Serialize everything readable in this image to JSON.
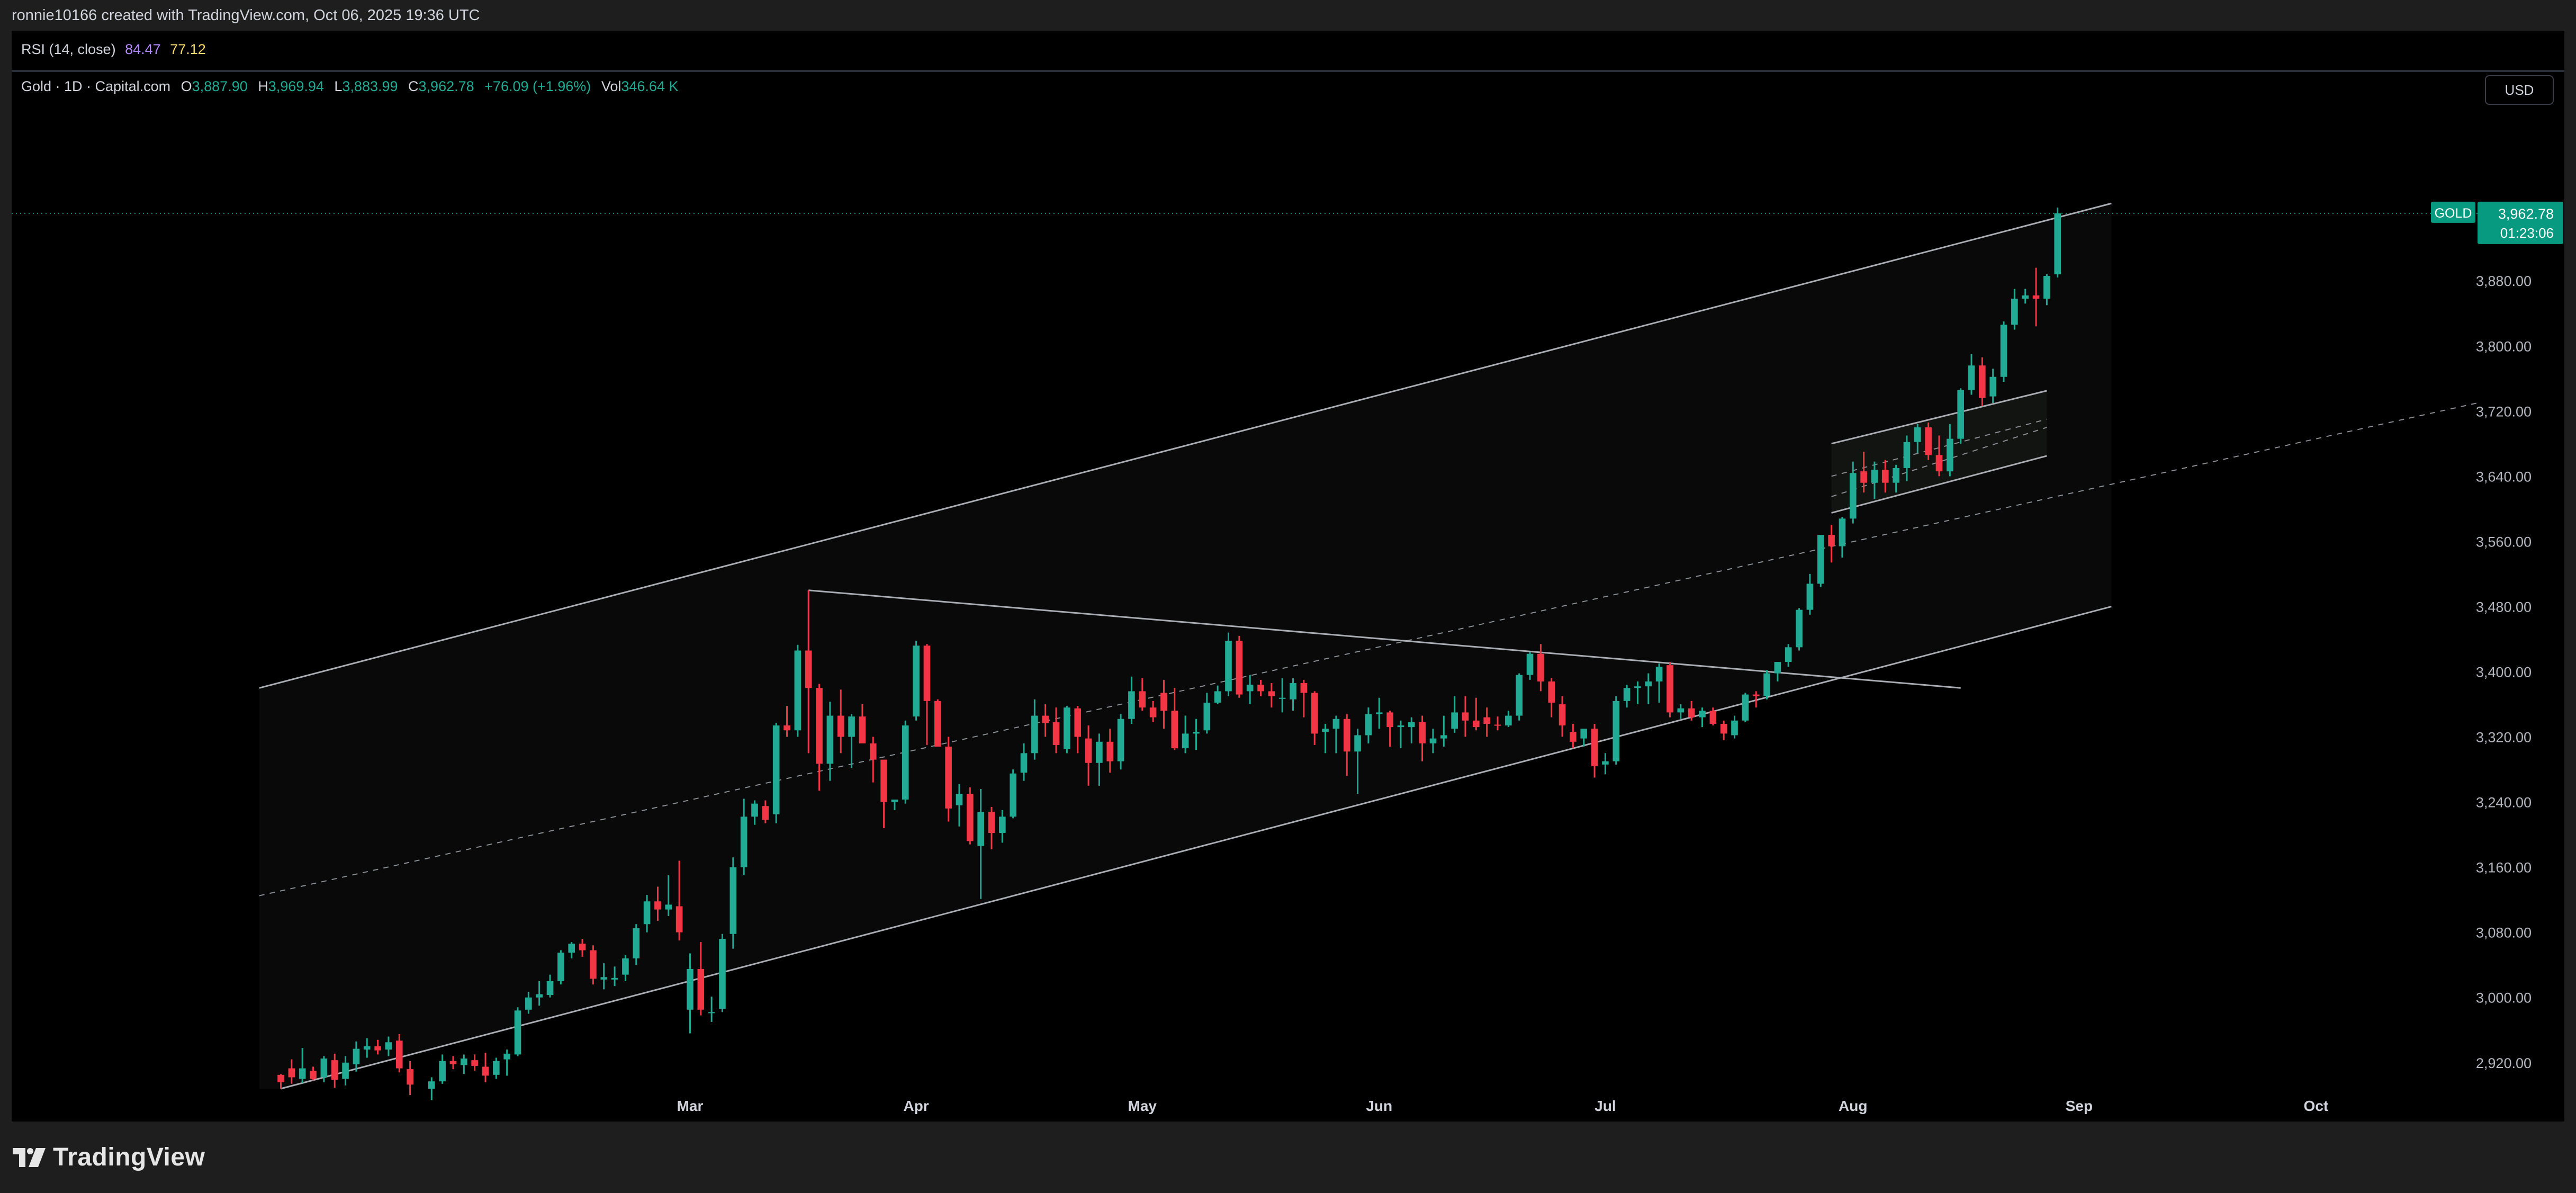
{
  "header": {
    "caption": "ronnie10166 created with TradingView.com, Oct 06, 2025 19:36 UTC"
  },
  "rsi": {
    "label": "RSI (14, close)",
    "value1": "84.47",
    "value2": "77.12",
    "color1": "#b388ff",
    "color2": "#f5d76e"
  },
  "legend": {
    "symbol": "Gold · 1D · Capital.com",
    "o_label": "O",
    "o_value": "3,887.90",
    "h_label": "H",
    "h_value": "3,969.94",
    "l_label": "L",
    "l_value": "3,883.99",
    "c_label": "C",
    "c_value": "3,962.78",
    "change": "+76.09 (+1.96%)",
    "vol_label": "Vol",
    "vol_value": "346.64 K"
  },
  "currency_button": "USD",
  "price_tag": {
    "symbol": "GOLD",
    "price": "3,962.78",
    "countdown": "01:23:06"
  },
  "footer": {
    "logo_text": "TradingView"
  },
  "colors": {
    "up": "#22ab94",
    "down": "#f23645",
    "background": "#000000",
    "channel_line": "#a9acb2",
    "last_price_tag": "#089981"
  },
  "chart_data": {
    "type": "candlestick",
    "symbol": "Gold",
    "interval": "1D",
    "source": "Capital.com",
    "ylim": [
      2888,
      4083
    ],
    "y_ticks": [
      "2,920.00",
      "3,000.00",
      "3,080.00",
      "3,160.00",
      "3,240.00",
      "3,320.00",
      "3,400.00",
      "3,480.00",
      "3,560.00",
      "3,640.00",
      "3,720.00",
      "3,800.00",
      "3,880.00"
    ],
    "x_ticks": [
      {
        "label": "Mar",
        "x": 40
      },
      {
        "label": "Apr",
        "x": 61
      },
      {
        "label": "May",
        "x": 82
      },
      {
        "label": "Jun",
        "x": 104
      },
      {
        "label": "Jul",
        "x": 125
      },
      {
        "label": "Aug",
        "x": 148
      },
      {
        "label": "Sep",
        "x": 169
      },
      {
        "label": "Oct",
        "x": 191
      }
    ],
    "xlim": [
      -23,
      206
    ],
    "candles": [
      [
        2,
        2905,
        2906,
        2888,
        2896
      ],
      [
        3,
        2913,
        2924,
        2894,
        2902
      ],
      [
        4,
        2900,
        2938,
        2895,
        2913
      ],
      [
        5,
        2910,
        2915,
        2898,
        2900
      ],
      [
        6,
        2902,
        2928,
        2896,
        2925
      ],
      [
        7,
        2923,
        2931,
        2889,
        2899
      ],
      [
        8,
        2900,
        2928,
        2892,
        2920
      ],
      [
        9,
        2918,
        2946,
        2909,
        2937
      ],
      [
        10,
        2936,
        2950,
        2926,
        2940
      ],
      [
        11,
        2940,
        2948,
        2930,
        2935
      ],
      [
        12,
        2936,
        2952,
        2928,
        2945
      ],
      [
        13,
        2947,
        2955,
        2908,
        2913
      ],
      [
        14,
        2912,
        2922,
        2880,
        2893
      ],
      [
        16,
        2888,
        2902,
        2874,
        2897
      ],
      [
        17,
        2897,
        2930,
        2894,
        2922
      ],
      [
        18,
        2922,
        2928,
        2912,
        2918
      ],
      [
        19,
        2917,
        2930,
        2906,
        2925
      ],
      [
        20,
        2923,
        2930,
        2910,
        2916
      ],
      [
        21,
        2915,
        2932,
        2896,
        2904
      ],
      [
        22,
        2905,
        2926,
        2900,
        2922
      ],
      [
        23,
        2924,
        2936,
        2904,
        2931
      ],
      [
        24,
        2930,
        2988,
        2928,
        2984
      ],
      [
        25,
        2985,
        3007,
        2980,
        3000
      ],
      [
        26,
        3000,
        3020,
        2990,
        3004
      ],
      [
        27,
        3003,
        3028,
        3000,
        3020
      ],
      [
        28,
        3020,
        3058,
        3016,
        3055
      ],
      [
        29,
        3055,
        3068,
        3048,
        3066
      ],
      [
        30,
        3066,
        3072,
        3050,
        3058
      ],
      [
        31,
        3058,
        3064,
        3016,
        3023
      ],
      [
        32,
        3022,
        3042,
        3010,
        3025
      ],
      [
        33,
        3022,
        3038,
        3014,
        3024
      ],
      [
        34,
        3028,
        3052,
        3020,
        3048
      ],
      [
        35,
        3048,
        3090,
        3040,
        3085
      ],
      [
        36,
        3090,
        3126,
        3080,
        3118
      ],
      [
        37,
        3118,
        3136,
        3094,
        3108
      ],
      [
        38,
        3108,
        3150,
        3100,
        3114
      ],
      [
        39,
        3112,
        3168,
        3070,
        3080
      ],
      [
        40,
        2985,
        3054,
        2956,
        3035
      ],
      [
        41,
        3035,
        3068,
        2978,
        2985
      ],
      [
        42,
        2982,
        3001,
        2970,
        2982
      ],
      [
        43,
        2986,
        3078,
        2982,
        3072
      ],
      [
        44,
        3078,
        3172,
        3060,
        3160
      ],
      [
        45,
        3160,
        3244,
        3150,
        3222
      ],
      [
        46,
        3222,
        3242,
        3212,
        3238
      ],
      [
        47,
        3235,
        3242,
        3214,
        3218
      ],
      [
        48,
        3225,
        3337,
        3214,
        3334
      ],
      [
        49,
        3334,
        3358,
        3320,
        3328
      ],
      [
        50,
        3328,
        3433,
        3320,
        3426
      ],
      [
        51,
        3426,
        3500,
        3300,
        3380
      ],
      [
        52,
        3380,
        3385,
        3254,
        3287
      ],
      [
        53,
        3287,
        3363,
        3266,
        3346
      ],
      [
        54,
        3346,
        3378,
        3300,
        3320
      ],
      [
        55,
        3320,
        3348,
        3282,
        3345
      ],
      [
        56,
        3345,
        3360,
        3314,
        3312
      ],
      [
        57,
        3312,
        3320,
        3264,
        3292
      ],
      [
        58,
        3292,
        3292,
        3208,
        3240
      ],
      [
        59,
        3240,
        3242,
        3230,
        3243
      ],
      [
        60,
        3243,
        3340,
        3238,
        3334
      ],
      [
        61,
        3345,
        3438,
        3340,
        3432
      ],
      [
        62,
        3432,
        3434,
        3310,
        3364
      ],
      [
        63,
        3364,
        3366,
        3312,
        3308
      ],
      [
        64,
        3308,
        3320,
        3216,
        3232
      ],
      [
        65,
        3236,
        3262,
        3210,
        3250
      ],
      [
        66,
        3250,
        3258,
        3188,
        3192
      ],
      [
        67,
        3186,
        3256,
        3121,
        3228
      ],
      [
        68,
        3228,
        3234,
        3182,
        3202
      ],
      [
        69,
        3202,
        3230,
        3190,
        3222
      ],
      [
        70,
        3222,
        3280,
        3220,
        3275
      ],
      [
        71,
        3276,
        3312,
        3266,
        3300
      ],
      [
        72,
        3300,
        3366,
        3292,
        3346
      ],
      [
        73,
        3346,
        3360,
        3320,
        3337
      ],
      [
        74,
        3338,
        3356,
        3300,
        3310
      ],
      [
        75,
        3305,
        3358,
        3300,
        3356
      ],
      [
        76,
        3355,
        3358,
        3300,
        3320
      ],
      [
        77,
        3318,
        3334,
        3260,
        3288
      ],
      [
        78,
        3288,
        3324,
        3260,
        3314
      ],
      [
        79,
        3314,
        3330,
        3276,
        3290
      ],
      [
        80,
        3290,
        3348,
        3280,
        3342
      ],
      [
        81,
        3342,
        3394,
        3336,
        3376
      ],
      [
        82,
        3376,
        3392,
        3352,
        3356
      ],
      [
        83,
        3356,
        3364,
        3338,
        3344
      ],
      [
        84,
        3374,
        3390,
        3330,
        3352
      ],
      [
        85,
        3352,
        3380,
        3304,
        3306
      ],
      [
        86,
        3306,
        3346,
        3300,
        3324
      ],
      [
        87,
        3324,
        3342,
        3304,
        3326
      ],
      [
        88,
        3328,
        3374,
        3324,
        3362
      ],
      [
        89,
        3362,
        3383,
        3360,
        3376
      ],
      [
        90,
        3376,
        3448,
        3370,
        3438
      ],
      [
        91,
        3438,
        3444,
        3368,
        3372
      ],
      [
        92,
        3376,
        3396,
        3360,
        3384
      ],
      [
        93,
        3384,
        3390,
        3370,
        3376
      ],
      [
        94,
        3376,
        3386,
        3356,
        3370
      ],
      [
        95,
        3368,
        3392,
        3350,
        3368
      ],
      [
        96,
        3366,
        3392,
        3352,
        3386
      ],
      [
        97,
        3386,
        3390,
        3344,
        3374
      ],
      [
        98,
        3374,
        3376,
        3310,
        3324
      ],
      [
        99,
        3326,
        3336,
        3300,
        3330
      ],
      [
        100,
        3330,
        3346,
        3300,
        3342
      ],
      [
        101,
        3342,
        3348,
        3272,
        3302
      ],
      [
        102,
        3302,
        3330,
        3250,
        3322
      ],
      [
        103,
        3322,
        3356,
        3312,
        3348
      ],
      [
        104,
        3348,
        3368,
        3330,
        3350
      ],
      [
        105,
        3350,
        3352,
        3308,
        3332
      ],
      [
        106,
        3332,
        3340,
        3306,
        3334
      ],
      [
        107,
        3332,
        3344,
        3312,
        3338
      ],
      [
        108,
        3338,
        3346,
        3290,
        3312
      ],
      [
        109,
        3312,
        3330,
        3300,
        3318
      ],
      [
        110,
        3318,
        3346,
        3308,
        3322
      ],
      [
        111,
        3330,
        3370,
        3325,
        3350
      ],
      [
        112,
        3350,
        3370,
        3320,
        3340
      ],
      [
        113,
        3340,
        3368,
        3328,
        3332
      ],
      [
        114,
        3344,
        3356,
        3320,
        3336
      ],
      [
        115,
        3335,
        3345,
        3328,
        3334
      ],
      [
        116,
        3334,
        3352,
        3332,
        3346
      ],
      [
        117,
        3346,
        3398,
        3340,
        3396
      ],
      [
        118,
        3396,
        3424,
        3390,
        3422
      ],
      [
        119,
        3422,
        3434,
        3376,
        3388
      ],
      [
        120,
        3388,
        3392,
        3344,
        3362
      ],
      [
        121,
        3360,
        3370,
        3320,
        3334
      ],
      [
        122,
        3326,
        3336,
        3306,
        3314
      ],
      [
        123,
        3318,
        3328,
        3308,
        3330
      ],
      [
        124,
        3330,
        3336,
        3270,
        3284
      ],
      [
        125,
        3286,
        3300,
        3274,
        3290
      ],
      [
        126,
        3290,
        3370,
        3286,
        3364
      ],
      [
        127,
        3364,
        3384,
        3356,
        3380
      ],
      [
        128,
        3380,
        3388,
        3360,
        3382
      ],
      [
        129,
        3382,
        3398,
        3360,
        3388
      ],
      [
        130,
        3388,
        3410,
        3362,
        3406
      ],
      [
        131,
        3408,
        3412,
        3344,
        3350
      ],
      [
        132,
        3350,
        3360,
        3342,
        3355
      ],
      [
        133,
        3355,
        3364,
        3340,
        3344
      ],
      [
        134,
        3344,
        3356,
        3332,
        3352
      ],
      [
        135,
        3352,
        3356,
        3334,
        3336
      ],
      [
        136,
        3336,
        3340,
        3316,
        3324
      ],
      [
        137,
        3322,
        3346,
        3318,
        3340
      ],
      [
        138,
        3340,
        3374,
        3338,
        3372
      ],
      [
        139,
        3372,
        3376,
        3356,
        3370
      ],
      [
        140,
        3370,
        3402,
        3366,
        3398
      ],
      [
        141,
        3398,
        3410,
        3388,
        3412
      ],
      [
        142,
        3412,
        3434,
        3406,
        3430
      ],
      [
        143,
        3430,
        3478,
        3426,
        3476
      ],
      [
        144,
        3476,
        3520,
        3470,
        3508
      ],
      [
        145,
        3508,
        3560,
        3504,
        3568
      ],
      [
        146,
        3568,
        3580,
        3534,
        3554
      ],
      [
        147,
        3554,
        3590,
        3540,
        3588
      ],
      [
        148,
        3588,
        3658,
        3582,
        3644
      ],
      [
        149,
        3646,
        3670,
        3620,
        3632
      ],
      [
        150,
        3632,
        3658,
        3612,
        3648
      ],
      [
        151,
        3648,
        3660,
        3620,
        3632
      ],
      [
        152,
        3632,
        3654,
        3620,
        3650
      ],
      [
        153,
        3650,
        3690,
        3634,
        3682
      ],
      [
        154,
        3682,
        3704,
        3668,
        3700
      ],
      [
        155,
        3700,
        3706,
        3660,
        3666
      ],
      [
        156,
        3666,
        3690,
        3640,
        3646
      ],
      [
        157,
        3646,
        3704,
        3640,
        3686
      ],
      [
        158,
        3686,
        3748,
        3680,
        3746
      ],
      [
        159,
        3746,
        3790,
        3740,
        3776
      ],
      [
        160,
        3776,
        3786,
        3726,
        3736
      ],
      [
        161,
        3738,
        3772,
        3730,
        3762
      ],
      [
        162,
        3762,
        3830,
        3756,
        3826
      ],
      [
        163,
        3826,
        3870,
        3820,
        3858
      ],
      [
        164,
        3858,
        3870,
        3852,
        3862
      ],
      [
        165,
        3862,
        3896,
        3824,
        3858
      ],
      [
        166,
        3858,
        3888,
        3850,
        3886
      ],
      [
        167,
        3887.9,
        3969.94,
        3883.99,
        3962.78
      ]
    ],
    "drawings": [
      {
        "name": "channel-upper",
        "points": [
          [
            0,
            3380
          ],
          [
            172,
            3975
          ]
        ]
      },
      {
        "name": "channel-lower",
        "points": [
          [
            2,
            2888
          ],
          [
            172,
            3480
          ]
        ]
      },
      {
        "name": "channel-median",
        "points": [
          [
            0,
            3125
          ],
          [
            206,
            3730
          ]
        ]
      },
      {
        "name": "descending-trendline",
        "points": [
          [
            51,
            3500
          ],
          [
            158,
            3380
          ]
        ]
      },
      {
        "name": "flag-upper",
        "points": [
          [
            146,
            3680
          ],
          [
            166,
            3745
          ]
        ]
      },
      {
        "name": "flag-lower",
        "points": [
          [
            146,
            3595
          ],
          [
            166,
            3665
          ]
        ]
      },
      {
        "name": "flag-median-1",
        "points": [
          [
            146,
            3615
          ],
          [
            166,
            3700
          ]
        ]
      },
      {
        "name": "flag-median-2",
        "points": [
          [
            146,
            3640
          ],
          [
            166,
            3710
          ]
        ]
      }
    ],
    "last_price": 3962.78
  }
}
